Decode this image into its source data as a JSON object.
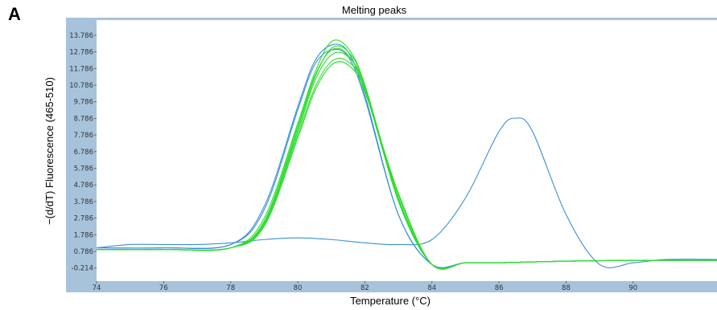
{
  "panel_label": "A",
  "chart_data": {
    "type": "line",
    "title": "Melting peaks",
    "xlabel": "Temperature (°C)",
    "ylabel": "−(d/dT) Fluorescence (465-510)",
    "xlim": [
      74,
      92.5
    ],
    "ylim": [
      -1.0,
      14.7
    ],
    "x_ticks": [
      74,
      76,
      78,
      80,
      82,
      84,
      86,
      88,
      90
    ],
    "x_tick_labels": [
      "74",
      "76",
      "78",
      "80",
      "82",
      "84",
      "86",
      "88",
      "90"
    ],
    "y_ticks": [
      -0.214,
      0.786,
      1.786,
      2.786,
      3.786,
      4.786,
      5.786,
      6.786,
      7.786,
      8.786,
      9.786,
      10.786,
      11.786,
      12.786,
      13.786
    ],
    "y_tick_labels": [
      "-0.214",
      "0.786",
      "1.786",
      "2.786",
      "3.786",
      "4.786",
      "5.786",
      "6.786",
      "7.786",
      "8.786",
      "9.786",
      "10.786",
      "11.786",
      "12.786",
      "13.786"
    ],
    "grid": false,
    "colors": {
      "axis_frame": "#a7c3dc",
      "plot_bg": "#ffffff",
      "blue": "#3a8fd8",
      "green": "#2fdc2f"
    },
    "series": [
      {
        "color": "#3a8fd8",
        "x": [
          74,
          76,
          78,
          79,
          80,
          80.5,
          81,
          81.5,
          82,
          83,
          84,
          85,
          86,
          88,
          90,
          92.5
        ],
        "y": [
          1.0,
          1.0,
          1.2,
          3.5,
          9.5,
          12.2,
          13.2,
          12.8,
          10.2,
          3.0,
          0.0,
          0.1,
          0.1,
          0.2,
          0.25,
          0.25
        ]
      },
      {
        "color": "#3a8fd8",
        "x": [
          74,
          76,
          78,
          79,
          80,
          80.5,
          81,
          81.5,
          82,
          83,
          84,
          85,
          86,
          88,
          90,
          92.5
        ],
        "y": [
          1.0,
          1.0,
          1.2,
          3.3,
          9.3,
          12.0,
          12.9,
          12.5,
          10.0,
          3.0,
          0.0,
          0.1,
          0.1,
          0.2,
          0.25,
          0.25
        ]
      },
      {
        "color": "#3a8fd8",
        "x": [
          74,
          75,
          76,
          77,
          78,
          79,
          80,
          81,
          82,
          83,
          84,
          85,
          86,
          86.5,
          87,
          88,
          89,
          90,
          91,
          92.5
        ],
        "y": [
          1.0,
          1.2,
          1.2,
          1.2,
          1.3,
          1.5,
          1.6,
          1.5,
          1.3,
          1.2,
          1.5,
          4.0,
          8.0,
          8.8,
          8.0,
          3.0,
          0.0,
          0.1,
          0.3,
          0.3
        ]
      },
      {
        "color": "#2fdc2f",
        "x": [
          74,
          76,
          78,
          79,
          80,
          80.5,
          81,
          81.5,
          82,
          83,
          84,
          85,
          86,
          88,
          90,
          92.5
        ],
        "y": [
          0.9,
          0.9,
          1.0,
          2.8,
          8.5,
          11.5,
          13.4,
          13.0,
          10.8,
          3.8,
          0.0,
          0.1,
          0.1,
          0.2,
          0.25,
          0.25
        ]
      },
      {
        "color": "#2fdc2f",
        "x": [
          74,
          76,
          78,
          79,
          80,
          80.5,
          81,
          81.5,
          82,
          83,
          84,
          85,
          86,
          88,
          90,
          92.5
        ],
        "y": [
          0.9,
          0.9,
          1.0,
          2.6,
          8.2,
          11.2,
          13.0,
          12.8,
          10.8,
          4.0,
          0.0,
          0.1,
          0.1,
          0.2,
          0.25,
          0.25
        ]
      },
      {
        "color": "#2fdc2f",
        "x": [
          74,
          76,
          78,
          79,
          80,
          80.5,
          81,
          81.5,
          82,
          83,
          84,
          85,
          86,
          88,
          90,
          92.5
        ],
        "y": [
          0.9,
          0.9,
          1.0,
          2.5,
          8.0,
          11.0,
          12.6,
          12.5,
          10.7,
          4.0,
          0.0,
          0.1,
          0.1,
          0.2,
          0.25,
          0.25
        ]
      },
      {
        "color": "#2fdc2f",
        "x": [
          74,
          76,
          78,
          79,
          80,
          80.5,
          81,
          81.5,
          82,
          83,
          84,
          85,
          86,
          88,
          90,
          92.5
        ],
        "y": [
          0.9,
          0.9,
          1.0,
          2.4,
          7.8,
          10.6,
          12.2,
          12.2,
          10.6,
          4.2,
          0.0,
          0.1,
          0.1,
          0.2,
          0.25,
          0.25
        ]
      },
      {
        "color": "#2fdc2f",
        "x": [
          74,
          76,
          78,
          79,
          80,
          80.5,
          81,
          81.5,
          82,
          83,
          84,
          85,
          86,
          88,
          90,
          92.5
        ],
        "y": [
          0.9,
          0.9,
          1.0,
          2.3,
          7.6,
          10.4,
          12.0,
          12.0,
          10.4,
          4.3,
          0.0,
          0.1,
          0.1,
          0.2,
          0.25,
          0.25
        ]
      },
      {
        "color": "#2fdc2f",
        "x": [
          74,
          76,
          78,
          79,
          80,
          80.5,
          81,
          81.5,
          82,
          83,
          84,
          85,
          86,
          88,
          90,
          92.5
        ],
        "y": [
          0.9,
          0.9,
          1.0,
          2.6,
          8.3,
          11.3,
          12.9,
          12.6,
          10.5,
          3.9,
          0.0,
          0.1,
          0.1,
          0.2,
          0.25,
          0.25
        ]
      }
    ]
  }
}
